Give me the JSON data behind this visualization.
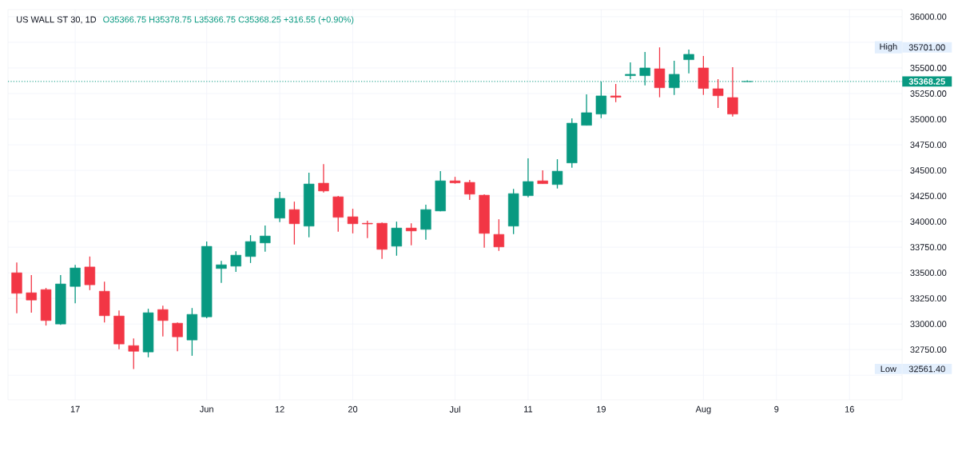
{
  "chart_data": {
    "type": "candlestick",
    "title": "US WALL ST 30, 1D",
    "subtitle": "O35366.75 H35378.75 L35366.75 C35368.25 +316.55 (+0.90%)",
    "categories": [
      null,
      null,
      null,
      null,
      "17",
      null,
      null,
      null,
      null,
      null,
      null,
      null,
      null,
      "Jun",
      null,
      null,
      null,
      null,
      "12",
      null,
      null,
      null,
      null,
      "20",
      null,
      null,
      null,
      null,
      null,
      null,
      "Jul",
      null,
      null,
      null,
      null,
      "11",
      null,
      null,
      null,
      null,
      "19",
      null,
      null,
      null,
      null,
      null,
      null,
      "Aug",
      null,
      null,
      null,
      null,
      "9",
      null,
      null,
      null,
      null,
      "16",
      null,
      null
    ],
    "ohlc": [
      [
        33500,
        33600,
        33105,
        33300
      ],
      [
        33305,
        33477,
        33110,
        33234
      ],
      [
        33336,
        33352,
        32985,
        33034
      ],
      [
        33000,
        33477,
        32992,
        33391
      ],
      [
        33367,
        33578,
        33203,
        33547
      ],
      [
        33557,
        33659,
        33331,
        33383
      ],
      [
        33320,
        33414,
        33016,
        33081
      ],
      [
        33078,
        33133,
        32753,
        32805
      ],
      [
        32789,
        32860,
        32561.4,
        32734
      ],
      [
        32727,
        33149,
        32675,
        33110
      ],
      [
        33141,
        33180,
        32878,
        33034
      ],
      [
        33008,
        33016,
        32734,
        32875
      ],
      [
        32844,
        33156,
        32690,
        33094
      ],
      [
        33070,
        33805,
        33057,
        33758
      ],
      [
        33542,
        33617,
        33401,
        33578
      ],
      [
        33565,
        33711,
        33510,
        33672
      ],
      [
        33659,
        33867,
        33596,
        33805
      ],
      [
        33792,
        33961,
        33706,
        33859
      ],
      [
        34034,
        34289,
        33995,
        34227
      ],
      [
        34117,
        34195,
        33776,
        33979
      ],
      [
        33956,
        34477,
        33846,
        34367
      ],
      [
        34375,
        34562,
        34284,
        34299
      ],
      [
        34242,
        34250,
        33901,
        34042
      ],
      [
        34047,
        34125,
        33885,
        33979
      ],
      [
        33984,
        34008,
        33839,
        33977
      ],
      [
        33984,
        33992,
        33635,
        33729
      ],
      [
        33760,
        34000,
        33667,
        33937
      ],
      [
        33937,
        33984,
        33768,
        33909
      ],
      [
        33924,
        34164,
        33823,
        34117
      ],
      [
        34104,
        34492,
        34100,
        34398
      ],
      [
        34398,
        34437,
        34370,
        34378
      ],
      [
        34383,
        34406,
        34211,
        34268
      ],
      [
        34258,
        34266,
        33745,
        33885
      ],
      [
        33875,
        34023,
        33714,
        33753
      ],
      [
        33956,
        34320,
        33878,
        34273
      ],
      [
        34253,
        34617,
        34237,
        34391
      ],
      [
        34398,
        34500,
        34370,
        34370
      ],
      [
        34362,
        34609,
        34323,
        34492
      ],
      [
        34573,
        35008,
        34526,
        34961
      ],
      [
        34940,
        35242,
        34940,
        35063
      ],
      [
        35050,
        35367,
        35010,
        35227
      ],
      [
        35227,
        35344,
        35167,
        35214
      ],
      [
        35425,
        35555,
        35391,
        35438
      ],
      [
        35425,
        35656,
        35331,
        35500
      ],
      [
        35492,
        35701,
        35214,
        35307
      ],
      [
        35307,
        35570,
        35237,
        35438
      ],
      [
        35581,
        35680,
        35448,
        35633
      ],
      [
        35500,
        35617,
        35237,
        35300
      ],
      [
        35297,
        35391,
        35109,
        35229
      ],
      [
        35211,
        35508,
        35026,
        35050
      ],
      [
        35366.75,
        35378.75,
        35366.75,
        35368.25
      ],
      null,
      null,
      null,
      null,
      null,
      null,
      null,
      null,
      null
    ],
    "colors": [
      "#f23645",
      "#f23645",
      "#f23645",
      "#089981",
      "#089981",
      "#f23645",
      "#f23645",
      "#f23645",
      "#f23645",
      "#089981",
      "#f23645",
      "#f23645",
      "#089981",
      "#089981",
      "#089981",
      "#089981",
      "#089981",
      "#089981",
      "#089981",
      "#f23645",
      "#089981",
      "#f23645",
      "#f23645",
      "#f23645",
      "#f23645",
      "#f23645",
      "#089981",
      "#f23645",
      "#089981",
      "#089981",
      "#f23645",
      "#f23645",
      "#f23645",
      "#f23645",
      "#089981",
      "#089981",
      "#f23645",
      "#089981",
      "#089981",
      "#089981",
      "#089981",
      "#f23645",
      "#089981",
      "#089981",
      "#f23645",
      "#089981",
      "#089981",
      "#f23645",
      "#f23645",
      "#f23645",
      "#089981",
      null,
      null,
      null,
      null,
      null,
      null,
      null,
      null,
      null
    ],
    "ylim": [
      32260,
      36070
    ],
    "yticks": [
      {
        "value": 32500,
        "label": null
      },
      {
        "value": 32750,
        "label": "32750.00"
      },
      {
        "value": 33000,
        "label": "33000.00"
      },
      {
        "value": 33250,
        "label": "33250.00"
      },
      {
        "value": 33500,
        "label": "33500.00"
      },
      {
        "value": 33750,
        "label": "33750.00"
      },
      {
        "value": 34000,
        "label": "34000.00"
      },
      {
        "value": 34250,
        "label": "34250.00"
      },
      {
        "value": 34500,
        "label": "34500.00"
      },
      {
        "value": 34750,
        "label": "34750.00"
      },
      {
        "value": 35000,
        "label": "35000.00"
      },
      {
        "value": 35250,
        "label": "35250.00"
      },
      {
        "value": 35500,
        "label": "35500.00"
      },
      {
        "value": 35750,
        "label": null
      },
      {
        "value": 36000,
        "label": "36000.00"
      }
    ],
    "grid": true,
    "ref_lines": [
      {
        "axis": "y",
        "value": 35368.25,
        "label": "35368.25",
        "color": "#089981",
        "line_style": "dotted"
      }
    ],
    "annotations": [
      {
        "text": "High",
        "y": 35701
      },
      "35701.00",
      {
        "text": "Low",
        "y": 32561.4
      },
      "32561.40"
    ]
  }
}
